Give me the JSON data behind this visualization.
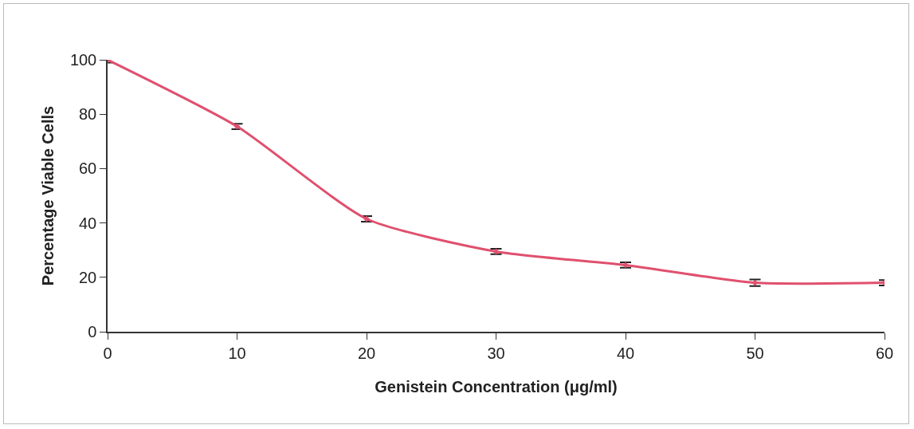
{
  "chart_data": {
    "type": "line",
    "xlabel": "Genistein Concentration (μg/ml)",
    "ylabel": "Percentage Viable Cells",
    "x": [
      0,
      10,
      20,
      30,
      40,
      50,
      60
    ],
    "series": [
      {
        "color": "#e0506e",
        "values": [
          100,
          75.5,
          41.5,
          29.5,
          24.5,
          18,
          18
        ],
        "errors": [
          1,
          1,
          1,
          1,
          1,
          1.2,
          1
        ]
      }
    ],
    "xlim": [
      0,
      60
    ],
    "xticks": [
      0,
      10,
      20,
      30,
      40,
      50,
      60
    ],
    "ylim": [
      0,
      100
    ],
    "yticks": [
      0,
      20,
      40,
      60,
      80,
      100
    ],
    "grid": false,
    "marker": "diamond",
    "line_style": "solid"
  }
}
